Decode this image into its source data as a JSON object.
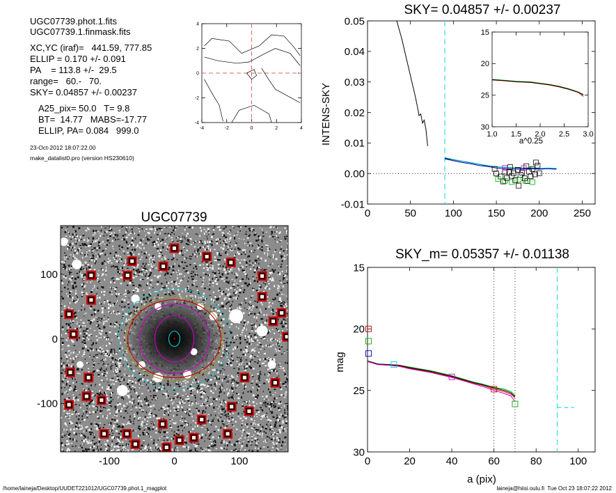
{
  "header": {
    "lines": [
      "UGC07739.phot.1.fits",
      "UGC07739.1.finmask.fits",
      "XC,YC (iraf)=   441.59, 777.85",
      "ELLIP = 0.170 +/- 0.091",
      "PA    = 113.8 +/-  29.5",
      "range=   60.-   70.",
      "SKY= 0.04857 +/- 0.00237",
      "A25_pix= 50.0   T= 9.8",
      "BT=  14.77   MABS=-17.77",
      "ELLIP, PA= 0.084   999.0"
    ],
    "date": "23-Oct-2012 18:07:22.00",
    "program": "make_datalist0.pro (version HS230610)"
  },
  "footer": {
    "path": "/home/laineja/Desktop/UUDET221012/UGC07739.phot.1_magplot",
    "user_date": "laineja@hiisi.oulu.fi  Tue Oct 23 18:07:22 2012"
  },
  "chart_data": [
    {
      "id": "contour",
      "type": "line",
      "xlim": [
        -4,
        4
      ],
      "ylim": [
        -4,
        4
      ],
      "xticks": [
        "-4",
        "-2",
        "0",
        "2",
        "4"
      ],
      "yticks": [
        "-4",
        "-2",
        "0",
        "2",
        "4"
      ],
      "center": [
        0,
        0
      ],
      "contours": [
        [
          [
            -3.8,
            2.2
          ],
          [
            -3.2,
            2.8
          ],
          [
            -1.8,
            2.6
          ],
          [
            -0.8,
            1.6
          ],
          [
            0.6,
            2.2
          ],
          [
            1.6,
            3.1
          ],
          [
            2.6,
            3.0
          ],
          [
            3.4,
            2.1
          ],
          [
            3.9,
            1.4
          ]
        ],
        [
          [
            -3.8,
            1.3
          ],
          [
            -2.7,
            1.0
          ],
          [
            -1.2,
            0.8
          ],
          [
            -0.2,
            0.9
          ],
          [
            0.9,
            1.5
          ],
          [
            1.9,
            2.0
          ],
          [
            3.1,
            1.6
          ],
          [
            3.9,
            0.6
          ]
        ],
        [
          [
            -3.8,
            -0.5
          ],
          [
            -3.2,
            -1.6
          ],
          [
            -2.6,
            -2.6
          ],
          [
            -2.3,
            -3.9
          ]
        ],
        [
          [
            -0.4,
            0.0
          ],
          [
            0.2,
            0.3
          ],
          [
            0.4,
            -0.2
          ],
          [
            0.0,
            -0.5
          ],
          [
            -0.4,
            0.0
          ]
        ],
        [
          [
            0.8,
            0.4
          ],
          [
            1.3,
            -0.4
          ],
          [
            1.9,
            -1.3
          ],
          [
            2.8,
            -1.8
          ],
          [
            3.9,
            -2.4
          ]
        ],
        [
          [
            -1.6,
            -4.0
          ],
          [
            -1.0,
            -3.0
          ],
          [
            0.2,
            -2.6
          ],
          [
            1.4,
            -3.3
          ],
          [
            1.6,
            -4.0
          ]
        ]
      ]
    },
    {
      "id": "intensity",
      "type": "line",
      "title": "SKY= 0.04857 +/- 0.00237",
      "ylabel": "INTENS-SKY",
      "xlim": [
        0,
        265
      ],
      "ylim": [
        -0.01,
        0.05
      ],
      "xticks": [
        "0",
        "50",
        "100",
        "150",
        "200",
        "250"
      ],
      "yticks": [
        "-0.01",
        "0.00",
        "0.01",
        "0.02",
        "0.03",
        "0.04",
        "0.05"
      ],
      "sky_line_x": 90,
      "series": [
        {
          "color": "#000000",
          "x": [
            34,
            40,
            45,
            50,
            55,
            58,
            60,
            62,
            64,
            66,
            68,
            70
          ],
          "y": [
            0.05,
            0.044,
            0.038,
            0.032,
            0.026,
            0.022,
            0.019,
            0.0195,
            0.0165,
            0.0175,
            0.0145,
            0.009
          ]
        },
        {
          "color": "#000000",
          "x": [
            90,
            100,
            110,
            120,
            130,
            140,
            150,
            160,
            170,
            180,
            190,
            200,
            210,
            220
          ],
          "y": [
            0.005,
            0.0045,
            0.004,
            0.0035,
            0.003,
            0.0025,
            0.0022,
            0.002,
            0.0018,
            0.0017,
            0.0018,
            0.0016,
            0.0017,
            0.0016
          ]
        },
        {
          "color": "#0000cc",
          "x": [
            90,
            100,
            110,
            120,
            130,
            140,
            150,
            160,
            170,
            180,
            190,
            200,
            210,
            220
          ],
          "y": [
            0.0048,
            0.0042,
            0.0036,
            0.0032,
            0.0026,
            0.0023,
            0.0018,
            0.0016,
            0.0014,
            0.0014,
            0.0016,
            0.0014,
            0.0016,
            0.0014
          ]
        },
        {
          "color": "#00cccc",
          "x": [
            90,
            100,
            110,
            120,
            130,
            140,
            150,
            160,
            170,
            180,
            190,
            200,
            210,
            220
          ],
          "y": [
            0.0052,
            0.0046,
            0.0041,
            0.0036,
            0.0031,
            0.0026,
            0.0022,
            0.0021,
            0.0019,
            0.0018,
            0.0019,
            0.0017,
            0.0018,
            0.0017
          ]
        }
      ],
      "squares": [
        {
          "color": "#000000",
          "points": [
            [
              150,
              0.0
            ],
            [
              155,
              -0.001
            ],
            [
              160,
              0.0006
            ],
            [
              162,
              -0.0015
            ],
            [
              165,
              0.0004
            ],
            [
              168,
              -0.0008
            ],
            [
              170,
              0.0001
            ],
            [
              172,
              -0.0022
            ],
            [
              175,
              0.0012
            ],
            [
              178,
              -0.0004
            ],
            [
              180,
              0.0003
            ],
            [
              183,
              -0.0016
            ],
            [
              185,
              0.0024
            ],
            [
              188,
              0.0006
            ],
            [
              190,
              -0.0009
            ],
            [
              192,
              0.0015
            ],
            [
              195,
              -0.0003
            ],
            [
              198,
              0.0026
            ],
            [
              200,
              0.0001
            ],
            [
              148,
              0.0015
            ],
            [
              158,
              -0.0026
            ],
            [
              166,
              0.0021
            ],
            [
              176,
              -0.004
            ],
            [
              186,
              -0.0025
            ],
            [
              196,
              0.0036
            ]
          ]
        },
        {
          "color": "#00aa00",
          "points": [
            [
              152,
              -0.0018
            ],
            [
              160,
              -0.0024
            ],
            [
              168,
              -0.0028
            ],
            [
              176,
              -0.002
            ],
            [
              184,
              -0.0024
            ],
            [
              192,
              -0.0028
            ]
          ]
        },
        {
          "color": "#cc00cc",
          "points": [
            [
              160,
              0.0018
            ],
            [
              182,
              0.0018
            ]
          ]
        }
      ],
      "inset": {
        "xlabel": "a^0.25",
        "xlim": [
          1.0,
          3.0
        ],
        "ylim": [
          15,
          30
        ],
        "xticks": [
          "1.0",
          "1.5",
          "2.0",
          "2.5",
          "3.0"
        ],
        "yticks": [
          "15",
          "20",
          "25",
          "30"
        ],
        "series": [
          {
            "color": "#00aa00",
            "x": [
              1.0,
              1.2,
              1.5,
              1.8,
              2.0,
              2.2,
              2.4,
              2.6,
              2.8,
              2.9
            ],
            "y": [
              22.5,
              22.6,
              22.8,
              22.9,
              23.1,
              23.3,
              23.6,
              24.0,
              24.5,
              25.0
            ]
          },
          {
            "color": "#cc0000",
            "x": [
              1.0,
              1.2,
              1.5,
              1.8,
              2.0,
              2.2,
              2.4,
              2.6,
              2.8,
              2.9
            ],
            "y": [
              22.6,
              22.7,
              22.9,
              23.0,
              23.2,
              23.4,
              23.7,
              24.1,
              24.6,
              25.2
            ]
          },
          {
            "color": "#000000",
            "x": [
              1.0,
              1.2,
              1.5,
              1.8,
              2.0,
              2.2,
              2.4,
              2.6,
              2.8,
              2.9
            ],
            "y": [
              22.55,
              22.65,
              22.85,
              22.95,
              23.15,
              23.35,
              23.65,
              24.05,
              24.55,
              24.9
            ]
          }
        ]
      }
    },
    {
      "id": "image",
      "type": "scatter",
      "title": "UGC07739",
      "xlim": [
        -175,
        175
      ],
      "ylim": [
        -175,
        175
      ],
      "xticks": [
        "-100",
        "0",
        "100"
      ],
      "yticks": [
        "-100",
        "0",
        "100"
      ],
      "ellipses": [
        {
          "color": "#00cccc",
          "rx": 8,
          "ry": 11,
          "dashed": false
        },
        {
          "color": "#cc00cc",
          "rx": 28,
          "ry": 33,
          "dashed": false
        },
        {
          "color": "#cc00cc",
          "rx": 50,
          "ry": 50,
          "dashed": false
        },
        {
          "color": "#cc0000",
          "rx": 67,
          "ry": 56,
          "dashed": false
        },
        {
          "color": "#999933",
          "rx": 70,
          "ry": 60,
          "dashed": false
        },
        {
          "color": "#00cccc",
          "rx": 80,
          "ry": 72,
          "dashed": true
        }
      ],
      "mask_boxes": [
        [
          0,
          140
        ],
        [
          -65,
          120
        ],
        [
          -17,
          112
        ],
        [
          50,
          127
        ],
        [
          87,
          118
        ],
        [
          -128,
          98
        ],
        [
          -72,
          98
        ],
        [
          135,
          97
        ],
        [
          -128,
          60
        ],
        [
          135,
          65
        ],
        [
          -162,
          38
        ],
        [
          165,
          40
        ],
        [
          152,
          27
        ],
        [
          -155,
          7
        ],
        [
          173,
          3
        ],
        [
          -160,
          -52
        ],
        [
          108,
          -60
        ],
        [
          -132,
          -60
        ],
        [
          155,
          -68
        ],
        [
          -135,
          -89
        ],
        [
          -112,
          -95
        ],
        [
          88,
          -105
        ],
        [
          -162,
          -102
        ],
        [
          115,
          -112
        ],
        [
          42,
          -125
        ],
        [
          -18,
          -132
        ],
        [
          -108,
          -147
        ],
        [
          -73,
          -147
        ],
        [
          82,
          -147
        ],
        [
          30,
          -153
        ],
        [
          -60,
          -163
        ],
        [
          8,
          -157
        ],
        [
          -12,
          -168
        ]
      ]
    },
    {
      "id": "magnitude",
      "type": "line",
      "title": "SKY_m=  0.05357 +/- 0.01138",
      "xlabel": "a (pix)",
      "ylabel": "mag",
      "xlim": [
        0,
        108
      ],
      "ylim": [
        15,
        30
      ],
      "xticks": [
        "0",
        "20",
        "40",
        "60",
        "80",
        "100"
      ],
      "yticks": [
        "15",
        "20",
        "25",
        "30"
      ],
      "range_lines_x": [
        60,
        70
      ],
      "sky_line_x": 90,
      "sky_mag_segment": {
        "x": [
          90,
          98
        ],
        "y": 26.4
      },
      "series": [
        {
          "color": "#00aa00",
          "x": [
            0,
            5,
            10,
            15,
            20,
            25,
            30,
            35,
            40,
            45,
            50,
            55,
            60,
            65,
            68,
            70
          ],
          "y": [
            22.6,
            22.85,
            22.9,
            22.95,
            23.1,
            23.25,
            23.4,
            23.6,
            23.8,
            24.05,
            24.3,
            24.5,
            24.75,
            24.9,
            25.1,
            25.4
          ]
        },
        {
          "color": "#cc0000",
          "x": [
            0,
            5,
            10,
            15,
            20,
            25,
            30,
            35,
            40,
            45,
            50,
            55,
            60,
            65,
            68,
            70
          ],
          "y": [
            22.65,
            22.9,
            22.95,
            23.0,
            23.2,
            23.35,
            23.5,
            23.7,
            23.9,
            24.15,
            24.4,
            24.6,
            24.9,
            25.1,
            25.3,
            25.6
          ]
        },
        {
          "color": "#000000",
          "x": [
            0,
            5,
            10,
            15,
            20,
            25,
            30,
            35,
            40,
            45,
            50,
            55,
            60,
            65,
            68,
            70
          ],
          "y": [
            22.6,
            22.85,
            22.9,
            22.95,
            23.15,
            23.3,
            23.45,
            23.65,
            23.85,
            24.1,
            24.35,
            24.55,
            24.8,
            25.0,
            25.2,
            25.5
          ]
        },
        {
          "color": "#cc00cc",
          "x": [
            0,
            5,
            10,
            15,
            20,
            25,
            30,
            35,
            40,
            45,
            50,
            55,
            60,
            65,
            68,
            70
          ],
          "y": [
            22.65,
            22.9,
            22.95,
            23.05,
            23.25,
            23.4,
            23.55,
            23.75,
            23.95,
            24.2,
            24.45,
            24.7,
            25.0,
            25.25,
            25.45,
            25.9
          ]
        }
      ],
      "squares": [
        {
          "color": "#cc0000",
          "x": 0.5,
          "y": 20.0
        },
        {
          "color": "#00aa00",
          "x": 0.5,
          "y": 21.0
        },
        {
          "color": "#0000cc",
          "x": 0.5,
          "y": 22.0
        },
        {
          "color": "#00cccc",
          "x": 12.5,
          "y": 22.9
        },
        {
          "color": "#cc00cc",
          "x": 40,
          "y": 23.9
        },
        {
          "color": "#00aa00",
          "x": 70,
          "y": 26.1
        },
        {
          "color": "#cc0000",
          "x": 60,
          "y": 24.9
        }
      ]
    }
  ]
}
